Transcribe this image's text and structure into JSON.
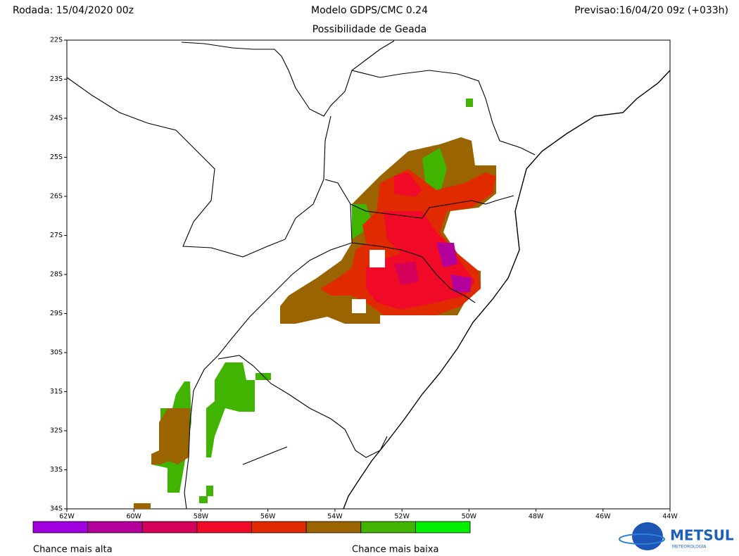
{
  "header": {
    "run": "Rodada: 15/04/2020 00z",
    "model": "Modelo GDPS/CMC 0.24",
    "forecast": "Previsao:16/04/20 09z (+033h)",
    "subtitle": "Possibilidade de Geada"
  },
  "map": {
    "lat_labels": [
      "22S",
      "23S",
      "24S",
      "25S",
      "26S",
      "27S",
      "28S",
      "29S",
      "30S",
      "31S",
      "32S",
      "33S",
      "34S"
    ],
    "lon_labels": [
      "62W",
      "60W",
      "58W",
      "56W",
      "54W",
      "52W",
      "50W",
      "48W",
      "46W",
      "44W"
    ]
  },
  "legend": {
    "colors": [
      "#a000e0",
      "#b4009b",
      "#d4005a",
      "#f00a28",
      "#e02a00",
      "#9a6400",
      "#40b400",
      "#00f000"
    ],
    "high": "Chance mais alta",
    "low": "Chance mais baixa"
  },
  "logo": {
    "name": "METSUL",
    "tagline": "METEOROLOGIA"
  }
}
